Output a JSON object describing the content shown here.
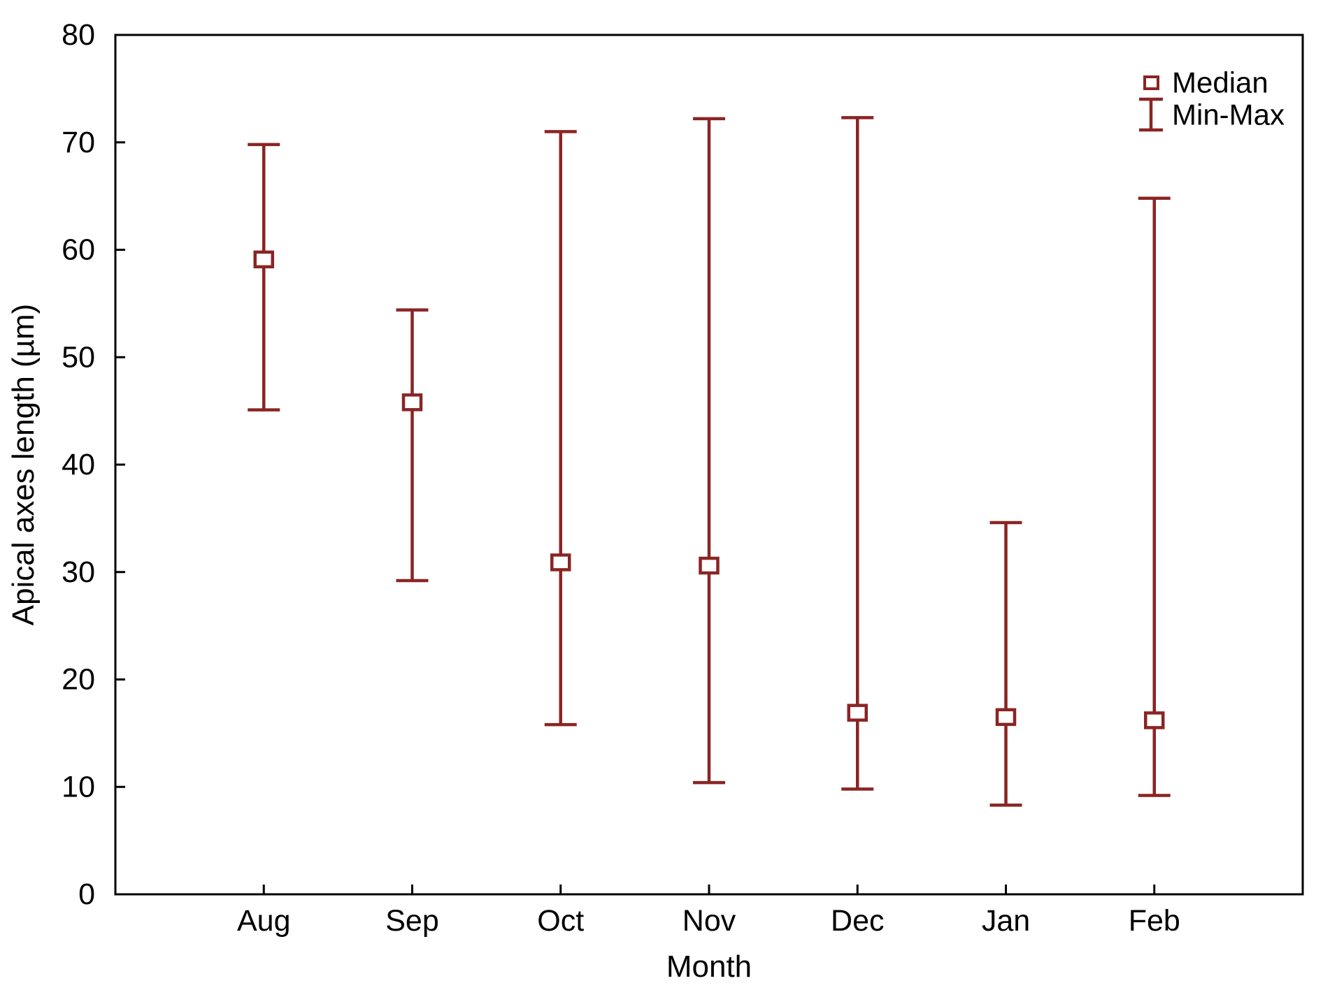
{
  "chart_data": {
    "type": "box-minmax-whisker",
    "title": "",
    "xlabel": "Month",
    "ylabel": "Apical axes length (µm)",
    "categories": [
      "Aug",
      "Sep",
      "Oct",
      "Nov",
      "Dec",
      "Jan",
      "Feb"
    ],
    "series": [
      {
        "name": "Median",
        "values": [
          59.1,
          45.8,
          30.9,
          30.6,
          16.9,
          16.5,
          16.2
        ]
      },
      {
        "name": "Min",
        "values": [
          45.1,
          29.2,
          15.8,
          10.4,
          9.8,
          8.3,
          9.2
        ]
      },
      {
        "name": "Max",
        "values": [
          69.8,
          54.4,
          71.0,
          72.2,
          72.3,
          34.6,
          64.8
        ]
      }
    ],
    "ylim": [
      0,
      80
    ],
    "yticks": [
      0,
      10,
      20,
      30,
      40,
      50,
      60,
      70,
      80
    ],
    "grid": false,
    "legend": {
      "position": "top-right",
      "entries": [
        "Median",
        "Min-Max"
      ]
    },
    "colors": {
      "series": "#8B2424",
      "axis": "#000000",
      "text": "#000000",
      "background": "#FFFFFF"
    }
  }
}
